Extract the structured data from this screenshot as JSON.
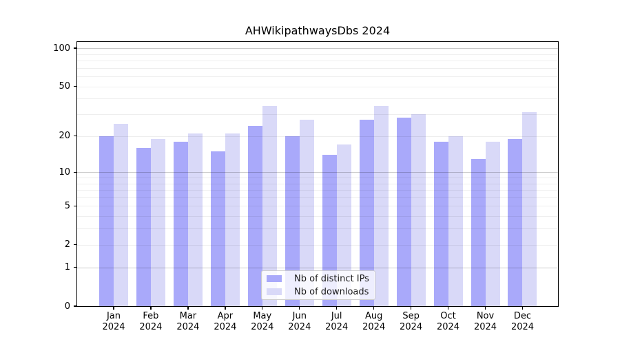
{
  "figure": {
    "background": "#ffffff"
  },
  "chart_data": {
    "type": "bar",
    "title": "AHWikipathwaysDbs 2024",
    "categories": [
      "Jan 2024",
      "Feb 2024",
      "Mar 2024",
      "Apr 2024",
      "May 2024",
      "Jun 2024",
      "Jul 2024",
      "Aug 2024",
      "Sep 2024",
      "Oct 2024",
      "Nov 2024",
      "Dec 2024"
    ],
    "x_tick_month_labels": [
      "Jan",
      "Feb",
      "Mar",
      "Apr",
      "May",
      "Jun",
      "Jul",
      "Aug",
      "Sep",
      "Oct",
      "Nov",
      "Dec"
    ],
    "x_tick_year_label": "2024",
    "series": [
      {
        "name": "Nb of distinct IPs",
        "color": "#a9a9fa",
        "values": [
          20,
          16,
          18,
          15,
          24,
          20,
          14,
          27,
          28,
          18,
          13,
          19
        ]
      },
      {
        "name": "Nb of downloads",
        "color": "#d9d9f8",
        "values": [
          25,
          19,
          21,
          21,
          35,
          27,
          17,
          35,
          30,
          20,
          18,
          31
        ]
      }
    ],
    "xlabel": "",
    "ylabel": "",
    "yscale": "log1p",
    "ylim": [
      0,
      112
    ],
    "yticks": [
      0,
      1,
      2,
      5,
      10,
      20,
      50,
      100
    ],
    "ytick_labels": [
      "0",
      "1",
      "2",
      "5",
      "10",
      "20",
      "50",
      "100"
    ],
    "grid": {
      "visible": true,
      "major_gridline_values": [
        1,
        10,
        100
      ],
      "minor_gridline_values": [
        2,
        3,
        4,
        5,
        6,
        7,
        8,
        9,
        20,
        30,
        40,
        50,
        60,
        70,
        80,
        90
      ],
      "major_color": "rgba(0,0,0,0.21)",
      "minor_color": "rgba(0,0,0,0.065)"
    },
    "legend": {
      "position": "lower center",
      "entries": [
        "Nb of distinct IPs",
        "Nb of downloads"
      ]
    }
  }
}
